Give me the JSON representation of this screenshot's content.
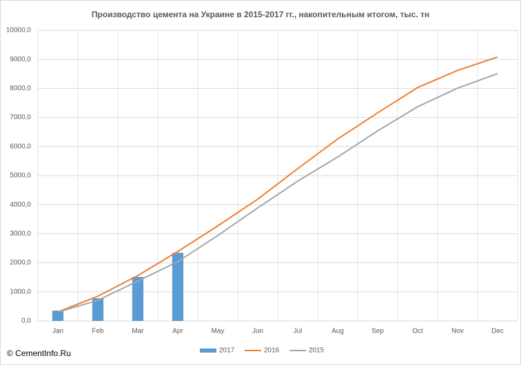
{
  "chart_data": {
    "type": "combo",
    "title": "Производство цемента на Украине в 2015-2017 гг., накопительным итогом,  тыс. тн",
    "watermark": "© CementInfo.Ru",
    "categories": [
      "Jan",
      "Feb",
      "Mar",
      "Apr",
      "May",
      "Jun",
      "Jul",
      "Aug",
      "Sep",
      "Oct",
      "Nov",
      "Dec"
    ],
    "series": [
      {
        "name": "2017",
        "type": "bar",
        "color": "#5b9bd5",
        "values": [
          355,
          780,
          1515,
          2345,
          null,
          null,
          null,
          null,
          null,
          null,
          null,
          null
        ]
      },
      {
        "name": "2016",
        "type": "line",
        "color": "#ed7d31",
        "values": [
          310,
          850,
          1560,
          2390,
          3270,
          4190,
          5240,
          6260,
          7160,
          8030,
          8620,
          9080
        ]
      },
      {
        "name": "2015",
        "type": "line",
        "color": "#a5a5a5",
        "values": [
          300,
          710,
          1370,
          2040,
          2940,
          3890,
          4810,
          5640,
          6540,
          7370,
          8010,
          8510
        ]
      }
    ],
    "ylim": [
      0,
      10000
    ],
    "yticks": [
      {
        "value": 0,
        "label": "0,0"
      },
      {
        "value": 1000,
        "label": "1000,0"
      },
      {
        "value": 2000,
        "label": "2000,0"
      },
      {
        "value": 3000,
        "label": "3000,0"
      },
      {
        "value": 4000,
        "label": "4000,0"
      },
      {
        "value": 5000,
        "label": "5000,0"
      },
      {
        "value": 6000,
        "label": "6000,0"
      },
      {
        "value": 7000,
        "label": "7000,0"
      },
      {
        "value": 8000,
        "label": "8000,0"
      },
      {
        "value": 9000,
        "label": "9000,0"
      },
      {
        "value": 10000,
        "label": "10000,0"
      }
    ],
    "grid": true,
    "legend": "bottom"
  }
}
